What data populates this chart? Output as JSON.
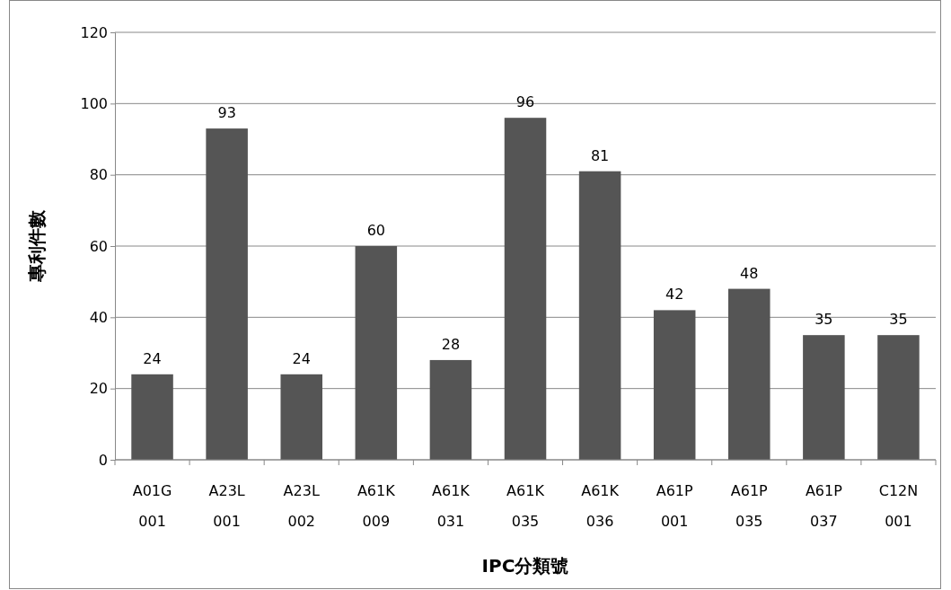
{
  "chart_data": {
    "type": "bar",
    "xlabel": "IPC分類號",
    "ylabel": "專利件數",
    "categories": [
      "A01G 001",
      "A23L 001",
      "A23L 002",
      "A61K 009",
      "A61K 031",
      "A61K 035",
      "A61K 036",
      "A61P 001",
      "A61P 035",
      "A61P 037",
      "C12N 001"
    ],
    "values": [
      24,
      93,
      24,
      60,
      28,
      96,
      81,
      42,
      48,
      35,
      35
    ],
    "color": "#555555",
    "ylim": [
      0,
      120
    ],
    "yticks": [
      0,
      20,
      40,
      60,
      80,
      100,
      120
    ],
    "grid": "y",
    "data_labels": true
  }
}
